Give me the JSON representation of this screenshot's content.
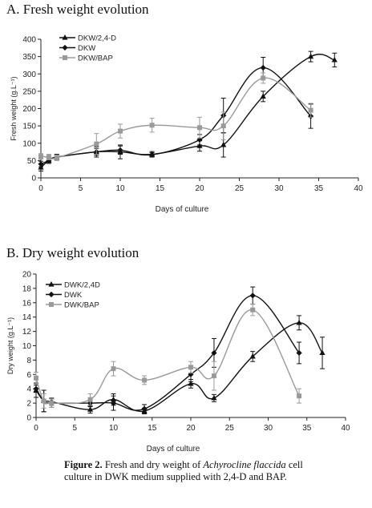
{
  "chart_data": [
    {
      "type": "line",
      "title": "A. Fresh weight evolution",
      "xlabel": "Days of culture",
      "ylabel": "Fresh weight (g.L⁻¹)",
      "xlim": [
        0,
        40
      ],
      "ylim": [
        0,
        400
      ],
      "xticks": [
        "0",
        "5",
        "10",
        "15",
        "20",
        "25",
        "30",
        "35",
        "40"
      ],
      "yticks": [
        "0",
        "50",
        "100",
        "150",
        "200",
        "250",
        "300",
        "350",
        "400"
      ],
      "xtick_values": [
        0,
        5,
        10,
        15,
        20,
        25,
        30,
        35,
        40
      ],
      "ytick_values": [
        0,
        50,
        100,
        150,
        200,
        250,
        300,
        350,
        400
      ],
      "legend_position": "top-left",
      "grid": false,
      "series": [
        {
          "name": "DKW/2,4-D",
          "marker": "triangle",
          "color": "#111111",
          "x": [
            0,
            1,
            2,
            7,
            10,
            14,
            20,
            23,
            28,
            34,
            37
          ],
          "y": [
            30,
            50,
            60,
            75,
            75,
            68,
            92,
            95,
            235,
            350,
            340
          ],
          "err": [
            10,
            8,
            8,
            15,
            20,
            8,
            15,
            35,
            15,
            15,
            20
          ]
        },
        {
          "name": "DKW",
          "marker": "diamond",
          "color": "#111111",
          "x": [
            0,
            1,
            2,
            7,
            10,
            14,
            20,
            23,
            28,
            34
          ],
          "y": [
            40,
            50,
            60,
            75,
            80,
            67,
            110,
            180,
            318,
            178
          ],
          "err": [
            8,
            8,
            8,
            10,
            12,
            6,
            15,
            50,
            30,
            35
          ]
        },
        {
          "name": "DKW/BAP",
          "marker": "square",
          "color": "#999999",
          "x": [
            0,
            1,
            2,
            7,
            10,
            14,
            20,
            23,
            28,
            34
          ],
          "y": [
            62,
            60,
            58,
            98,
            135,
            152,
            145,
            150,
            288,
            195
          ],
          "err": [
            8,
            8,
            8,
            30,
            20,
            20,
            30,
            40,
            15,
            20
          ]
        }
      ]
    },
    {
      "type": "line",
      "title": "B. Dry weight evolution",
      "xlabel": "Days of culture",
      "ylabel": "Dry weight (g.L⁻¹)",
      "xlim": [
        0,
        40
      ],
      "ylim": [
        0,
        20
      ],
      "xticks": [
        "0",
        "5",
        "10",
        "15",
        "20",
        "25",
        "30",
        "35",
        "40"
      ],
      "yticks": [
        "0",
        "2",
        "4",
        "6",
        "8",
        "10",
        "12",
        "14",
        "16",
        "18",
        "20"
      ],
      "xtick_values": [
        0,
        5,
        10,
        15,
        20,
        25,
        30,
        35,
        40
      ],
      "ytick_values": [
        0,
        2,
        4,
        6,
        8,
        10,
        12,
        14,
        16,
        18,
        20
      ],
      "legend_position": "top-left",
      "grid": false,
      "series": [
        {
          "name": "DWK/2,4D",
          "marker": "triangle",
          "color": "#111111",
          "x": [
            0,
            1,
            2,
            7,
            10,
            14,
            20,
            23,
            28,
            34,
            37
          ],
          "y": [
            3.8,
            2.3,
            2.2,
            1.1,
            2.5,
            0.9,
            4.7,
            2.7,
            8.5,
            13.2,
            9.0
          ],
          "err": [
            1.0,
            1.5,
            0.5,
            0.5,
            0.8,
            0.4,
            0.6,
            0.5,
            0.7,
            1.0,
            2.2
          ]
        },
        {
          "name": "DWK",
          "marker": "diamond",
          "color": "#111111",
          "x": [
            0,
            1,
            2,
            7,
            10,
            14,
            20,
            23,
            28,
            34
          ],
          "y": [
            4.0,
            2.3,
            2.0,
            2.0,
            2.0,
            1.2,
            6.0,
            9.0,
            17.0,
            9.0
          ],
          "err": [
            0.5,
            1.5,
            0.6,
            0.5,
            1.0,
            0.6,
            1.0,
            2.0,
            1.2,
            1.5
          ]
        },
        {
          "name": "DWK/BAP",
          "marker": "square",
          "color": "#999999",
          "x": [
            0,
            1,
            2,
            7,
            10,
            14,
            20,
            23,
            28,
            34
          ],
          "y": [
            5.5,
            2.3,
            2.0,
            2.5,
            6.8,
            5.2,
            7.0,
            5.8,
            15.0,
            3.0
          ],
          "err": [
            0.8,
            1.0,
            0.6,
            0.8,
            1.0,
            0.6,
            0.8,
            2.0,
            0.8,
            1.0
          ]
        }
      ]
    }
  ],
  "caption": {
    "label": "Figure 2.",
    "text_before": " Fresh and dry weight of ",
    "species": "Achyrocline flaccida",
    "text_after": " cell culture in DWK medium supplied with 2,4-D and BAP."
  }
}
